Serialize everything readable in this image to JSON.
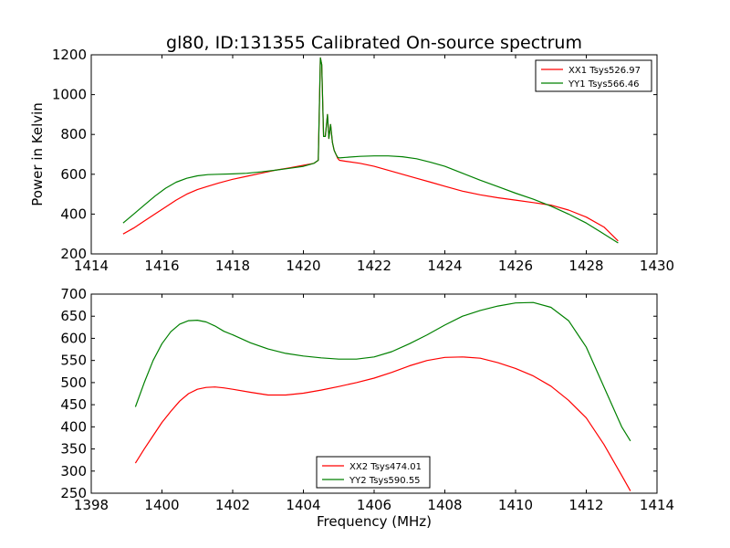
{
  "title": "gl80, ID:131355 Calibrated On-source spectrum",
  "colors": {
    "xx": "#ff0000",
    "yy": "#008000"
  },
  "chart_data": [
    {
      "type": "line",
      "title": "gl80, ID:131355 Calibrated On-source spectrum",
      "xlabel": "",
      "ylabel": "Power in Kelvin",
      "xlim": [
        1414,
        1430
      ],
      "ylim": [
        200,
        1200
      ],
      "xticks": [
        1414,
        1416,
        1418,
        1420,
        1422,
        1424,
        1426,
        1428,
        1430
      ],
      "yticks": [
        200,
        400,
        600,
        800,
        1000,
        1200
      ],
      "legend_position": "top-right",
      "grid": false,
      "series": [
        {
          "name": "XX1 Tsys526.97",
          "color": "#ff0000",
          "x": [
            1414.9,
            1415.2,
            1415.5,
            1415.8,
            1416.1,
            1416.4,
            1416.7,
            1417.0,
            1417.3,
            1417.6,
            1418.0,
            1418.4,
            1418.8,
            1419.2,
            1419.6,
            1420.0,
            1420.3,
            1420.42,
            1420.48,
            1420.52,
            1420.57,
            1420.62,
            1420.68,
            1420.72,
            1420.77,
            1420.82,
            1420.87,
            1420.92,
            1420.97,
            1421.02,
            1421.2,
            1421.6,
            1422.0,
            1422.4,
            1422.8,
            1423.2,
            1423.6,
            1424.0,
            1424.5,
            1425.0,
            1425.5,
            1426.0,
            1426.5,
            1427.0,
            1427.5,
            1428.0,
            1428.5,
            1428.9
          ],
          "y": [
            300,
            330,
            365,
            400,
            435,
            470,
            500,
            523,
            540,
            556,
            575,
            590,
            605,
            620,
            632,
            645,
            655,
            670,
            1185,
            1150,
            790,
            790,
            900,
            780,
            850,
            760,
            720,
            700,
            680,
            670,
            665,
            655,
            640,
            620,
            600,
            580,
            560,
            540,
            515,
            497,
            482,
            470,
            458,
            445,
            420,
            385,
            335,
            265
          ]
        },
        {
          "name": "YY1 Tsys566.46",
          "color": "#008000",
          "x": [
            1414.9,
            1415.2,
            1415.5,
            1415.8,
            1416.1,
            1416.4,
            1416.7,
            1417.0,
            1417.3,
            1417.6,
            1418.0,
            1418.4,
            1418.8,
            1419.2,
            1419.6,
            1420.0,
            1420.3,
            1420.42,
            1420.48,
            1420.52,
            1420.57,
            1420.62,
            1420.68,
            1420.72,
            1420.77,
            1420.82,
            1420.87,
            1420.92,
            1420.97,
            1421.02,
            1421.2,
            1421.6,
            1422.0,
            1422.4,
            1422.8,
            1423.2,
            1423.6,
            1424.0,
            1424.5,
            1425.0,
            1425.5,
            1426.0,
            1426.5,
            1427.0,
            1427.5,
            1428.0,
            1428.5,
            1428.9
          ],
          "y": [
            355,
            400,
            445,
            490,
            530,
            560,
            580,
            592,
            598,
            600,
            602,
            605,
            612,
            620,
            630,
            640,
            655,
            670,
            1185,
            1150,
            790,
            790,
            900,
            780,
            850,
            760,
            720,
            700,
            685,
            682,
            685,
            690,
            692,
            692,
            688,
            678,
            660,
            640,
            605,
            570,
            538,
            505,
            475,
            440,
            400,
            355,
            300,
            255
          ]
        }
      ]
    },
    {
      "type": "line",
      "title": "",
      "xlabel": "Frequency (MHz)",
      "ylabel": "",
      "xlim": [
        1398,
        1414
      ],
      "ylim": [
        250,
        700
      ],
      "xticks": [
        1398,
        1400,
        1402,
        1404,
        1406,
        1408,
        1410,
        1412,
        1414
      ],
      "yticks": [
        250,
        300,
        350,
        400,
        450,
        500,
        550,
        600,
        650,
        700
      ],
      "legend_position": "bottom-center",
      "grid": false,
      "series": [
        {
          "name": "XX2 Tsys474.01",
          "color": "#ff0000",
          "x": [
            1399.25,
            1399.5,
            1399.75,
            1400.0,
            1400.25,
            1400.5,
            1400.75,
            1401.0,
            1401.25,
            1401.5,
            1401.75,
            1402.0,
            1402.5,
            1403.0,
            1403.5,
            1404.0,
            1404.5,
            1405.0,
            1405.5,
            1406.0,
            1406.5,
            1407.0,
            1407.5,
            1408.0,
            1408.5,
            1409.0,
            1409.5,
            1410.0,
            1410.5,
            1411.0,
            1411.5,
            1412.0,
            1412.5,
            1413.0,
            1413.25
          ],
          "y": [
            318,
            350,
            380,
            410,
            435,
            458,
            475,
            485,
            489,
            490,
            488,
            485,
            478,
            472,
            472,
            476,
            483,
            491,
            500,
            510,
            523,
            538,
            550,
            557,
            558,
            555,
            545,
            532,
            515,
            492,
            460,
            420,
            360,
            290,
            255
          ]
        },
        {
          "name": "YY2 Tsys590.55",
          "color": "#008000",
          "x": [
            1399.25,
            1399.5,
            1399.75,
            1400.0,
            1400.25,
            1400.5,
            1400.75,
            1401.0,
            1401.25,
            1401.5,
            1401.75,
            1402.0,
            1402.5,
            1403.0,
            1403.5,
            1404.0,
            1404.5,
            1405.0,
            1405.5,
            1406.0,
            1406.5,
            1407.0,
            1407.5,
            1408.0,
            1408.5,
            1409.0,
            1409.5,
            1410.0,
            1410.5,
            1411.0,
            1411.5,
            1412.0,
            1412.5,
            1413.0,
            1413.25
          ],
          "y": [
            445,
            500,
            550,
            588,
            615,
            632,
            640,
            641,
            637,
            628,
            616,
            608,
            590,
            576,
            566,
            560,
            556,
            553,
            553,
            558,
            570,
            588,
            608,
            630,
            650,
            663,
            673,
            680,
            681,
            670,
            640,
            580,
            490,
            400,
            368
          ]
        }
      ]
    }
  ]
}
